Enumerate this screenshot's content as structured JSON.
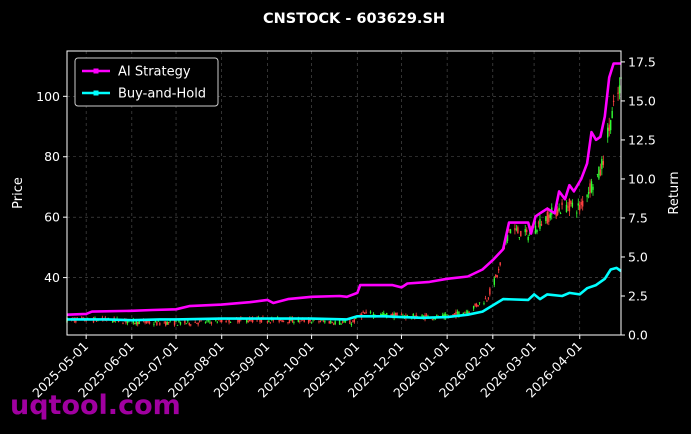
{
  "chart_data": {
    "type": "line",
    "title": "CNSTOCK - 603629.SH",
    "ylabel": "Price",
    "y2label": "Return",
    "ylim": [
      21,
      115
    ],
    "y2lim": [
      0,
      18.2
    ],
    "xlim": [
      "2025-04-18",
      "2026-04-29"
    ],
    "grid": true,
    "legend_position": "top-left",
    "x_ticks": [
      "2025-05-01",
      "2025-06-01",
      "2025-07-01",
      "2025-08-01",
      "2025-09-01",
      "2025-10-01",
      "2025-11-01",
      "2025-12-01",
      "2026-01-01",
      "2026-02-01",
      "2026-03-01",
      "2026-04-01"
    ],
    "y_ticks": [
      40,
      60,
      80,
      100
    ],
    "y2_ticks": [
      "0.0",
      "2.5",
      "5.0",
      "7.5",
      "10.0",
      "12.5",
      "15.0",
      "17.5"
    ],
    "series": [
      {
        "name": "AI Strategy",
        "color": "#ff00ff",
        "axis": "right",
        "points": [
          [
            "2025-04-18",
            1.3
          ],
          [
            "2025-05-01",
            1.35
          ],
          [
            "2025-05-05",
            1.5
          ],
          [
            "2025-06-01",
            1.55
          ],
          [
            "2025-06-15",
            1.6
          ],
          [
            "2025-07-01",
            1.65
          ],
          [
            "2025-07-10",
            1.85
          ],
          [
            "2025-08-01",
            1.95
          ],
          [
            "2025-08-20",
            2.1
          ],
          [
            "2025-09-01",
            2.25
          ],
          [
            "2025-09-05",
            2.05
          ],
          [
            "2025-09-15",
            2.3
          ],
          [
            "2025-10-01",
            2.45
          ],
          [
            "2025-10-20",
            2.5
          ],
          [
            "2025-10-25",
            2.45
          ],
          [
            "2025-11-01",
            2.7
          ],
          [
            "2025-11-03",
            3.2
          ],
          [
            "2025-11-25",
            3.2
          ],
          [
            "2025-12-01",
            3.05
          ],
          [
            "2025-12-05",
            3.3
          ],
          [
            "2025-12-20",
            3.4
          ],
          [
            "2026-01-01",
            3.6
          ],
          [
            "2026-01-15",
            3.75
          ],
          [
            "2026-01-25",
            4.2
          ],
          [
            "2026-02-01",
            4.8
          ],
          [
            "2026-02-08",
            5.5
          ],
          [
            "2026-02-12",
            7.2
          ],
          [
            "2026-02-25",
            7.2
          ],
          [
            "2026-02-27",
            6.5
          ],
          [
            "2026-03-02",
            7.6
          ],
          [
            "2026-03-05",
            7.8
          ],
          [
            "2026-03-10",
            8.1
          ],
          [
            "2026-03-15",
            7.8
          ],
          [
            "2026-03-18",
            9.2
          ],
          [
            "2026-03-22",
            8.7
          ],
          [
            "2026-03-25",
            9.6
          ],
          [
            "2026-03-28",
            9.2
          ],
          [
            "2026-04-02",
            10.0
          ],
          [
            "2026-04-06",
            11.0
          ],
          [
            "2026-04-09",
            13.0
          ],
          [
            "2026-04-12",
            12.5
          ],
          [
            "2026-04-15",
            12.7
          ],
          [
            "2026-04-18",
            14.0
          ],
          [
            "2026-04-21",
            16.5
          ],
          [
            "2026-04-24",
            17.4
          ],
          [
            "2026-04-29",
            17.4
          ]
        ]
      },
      {
        "name": "Buy-and-Hold",
        "color": "#00ffff",
        "axis": "right",
        "points": [
          [
            "2025-04-18",
            1.0
          ],
          [
            "2025-05-15",
            1.0
          ],
          [
            "2025-06-01",
            0.95
          ],
          [
            "2025-06-20",
            1.0
          ],
          [
            "2025-07-01",
            1.0
          ],
          [
            "2025-08-01",
            1.05
          ],
          [
            "2025-09-01",
            1.05
          ],
          [
            "2025-10-01",
            1.05
          ],
          [
            "2025-10-25",
            1.0
          ],
          [
            "2025-11-01",
            1.2
          ],
          [
            "2025-11-20",
            1.2
          ],
          [
            "2025-12-01",
            1.15
          ],
          [
            "2025-12-15",
            1.1
          ],
          [
            "2026-01-01",
            1.15
          ],
          [
            "2026-01-15",
            1.3
          ],
          [
            "2026-01-25",
            1.5
          ],
          [
            "2026-02-01",
            1.9
          ],
          [
            "2026-02-08",
            2.3
          ],
          [
            "2026-02-25",
            2.25
          ],
          [
            "2026-03-01",
            2.6
          ],
          [
            "2026-03-05",
            2.3
          ],
          [
            "2026-03-10",
            2.6
          ],
          [
            "2026-03-20",
            2.5
          ],
          [
            "2026-03-25",
            2.7
          ],
          [
            "2026-04-01",
            2.6
          ],
          [
            "2026-04-06",
            3.0
          ],
          [
            "2026-04-12",
            3.2
          ],
          [
            "2026-04-18",
            3.6
          ],
          [
            "2026-04-22",
            4.2
          ],
          [
            "2026-04-26",
            4.3
          ],
          [
            "2026-04-29",
            4.1
          ]
        ]
      }
    ],
    "candlesticks": {
      "axis": "left",
      "up_color": "#32ff32",
      "down_color": "#ff4040",
      "price_path": [
        [
          "2025-04-18",
          26
        ],
        [
          "2025-05-15",
          26
        ],
        [
          "2025-06-15",
          25
        ],
        [
          "2025-07-10",
          25
        ],
        [
          "2025-08-10",
          26
        ],
        [
          "2025-09-10",
          26
        ],
        [
          "2025-10-10",
          25.5
        ],
        [
          "2025-10-28",
          25
        ],
        [
          "2025-11-05",
          28
        ],
        [
          "2025-11-25",
          27.5
        ],
        [
          "2025-12-10",
          27
        ],
        [
          "2026-01-01",
          27
        ],
        [
          "2026-01-15",
          29
        ],
        [
          "2026-01-28",
          33
        ],
        [
          "2026-02-05",
          42
        ],
        [
          "2026-02-12",
          56
        ],
        [
          "2026-02-25",
          54
        ],
        [
          "2026-03-05",
          58
        ],
        [
          "2026-03-15",
          62
        ],
        [
          "2026-03-25",
          64
        ],
        [
          "2026-04-01",
          63
        ],
        [
          "2026-04-08",
          70
        ],
        [
          "2026-04-15",
          75
        ],
        [
          "2026-04-22",
          92
        ],
        [
          "2026-04-29",
          104
        ]
      ]
    }
  },
  "watermark": "uqtool.com"
}
